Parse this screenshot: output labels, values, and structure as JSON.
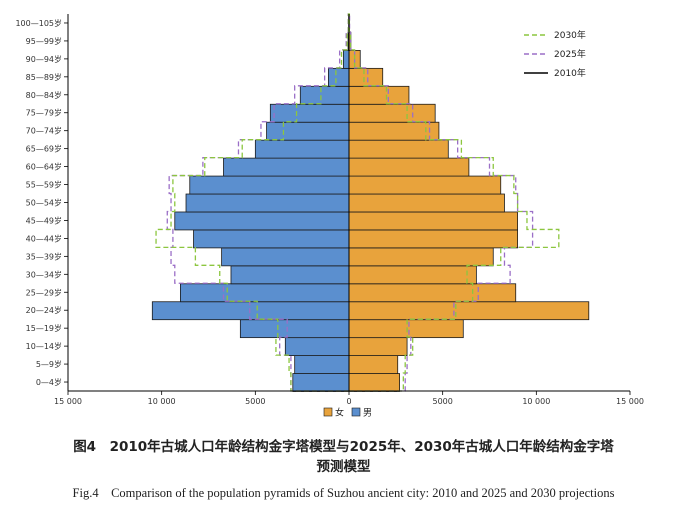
{
  "chart_data": {
    "type": "bar",
    "subtype": "population-pyramid",
    "categories": [
      "0—4岁",
      "5—9岁",
      "10—14岁",
      "15—19岁",
      "20—24岁",
      "25—29岁",
      "30—34岁",
      "35—39岁",
      "40—44岁",
      "45—49岁",
      "50—54岁",
      "55—59岁",
      "60—64岁",
      "65—69岁",
      "70—74岁",
      "75—79岁",
      "80—84岁",
      "85—89岁",
      "90—94岁",
      "95—99岁",
      "100—105岁"
    ],
    "series": [
      {
        "name": "男",
        "year": "2010年",
        "color": "#5b8fcf",
        "values": [
          3000,
          2900,
          3400,
          5800,
          10500,
          9000,
          6300,
          6800,
          8300,
          9300,
          8700,
          8500,
          6700,
          5000,
          4400,
          4200,
          2600,
          1100,
          300,
          50,
          20
        ]
      },
      {
        "name": "女",
        "year": "2010年",
        "color": "#e8a33c",
        "values": [
          2700,
          2600,
          3100,
          6100,
          12800,
          8900,
          6800,
          7700,
          9000,
          9000,
          8300,
          8100,
          6400,
          5300,
          4800,
          4600,
          3200,
          1800,
          600,
          100,
          30
        ]
      }
    ],
    "projections": [
      {
        "name": "2025年",
        "color": "#9b6fc7",
        "male": [
          3100,
          3100,
          3700,
          3300,
          5300,
          6700,
          9300,
          9500,
          9400,
          9700,
          9500,
          9600,
          7800,
          5900,
          4700,
          4000,
          2900,
          1300,
          500,
          150,
          40
        ],
        "female": [
          3000,
          3100,
          3300,
          3200,
          5600,
          6900,
          8600,
          8300,
          9800,
          9800,
          9000,
          8900,
          7500,
          5800,
          4300,
          3400,
          2100,
          1000,
          300,
          80,
          30
        ]
      },
      {
        "name": "2030年",
        "color": "#8cc63f",
        "male": [
          3100,
          3200,
          3900,
          3800,
          4900,
          6500,
          6900,
          8200,
          10300,
          9500,
          9300,
          9400,
          7700,
          5700,
          3500,
          2800,
          1500,
          700,
          400,
          100,
          30
        ]
      },
      {
        "name": "2030年_f",
        "color": "#8cc63f",
        "female": [
          2900,
          3000,
          3400,
          3100,
          5700,
          6600,
          6300,
          8100,
          11200,
          9500,
          9000,
          8800,
          7700,
          6000,
          4100,
          3100,
          2000,
          800,
          300,
          80,
          20
        ]
      }
    ],
    "xticks": [
      "15 000",
      "10 000",
      "5000",
      "0",
      "5000",
      "10 000",
      "15 000"
    ],
    "xlim": [
      -15000,
      15000
    ],
    "legend_lines": [
      {
        "label": "2030年",
        "style": "dashed",
        "color": "#8cc63f"
      },
      {
        "label": "2025年",
        "style": "dashed",
        "color": "#9b6fc7"
      },
      {
        "label": "2010年",
        "style": "solid",
        "color": "#000000"
      }
    ],
    "legend_bottom": [
      {
        "label": "女",
        "color": "#e8a33c"
      },
      {
        "label": "男",
        "color": "#5b8fcf"
      }
    ]
  },
  "caption": {
    "cn_line1": "图4　2010年古城人口年龄结构金字塔模型与2025年、2030年古城人口年龄结构金字塔",
    "cn_line2": "预测模型",
    "en": "Fig.4　Comparison of the population pyramids of Suzhou ancient city: 2010 and 2025 and 2030 projections"
  }
}
